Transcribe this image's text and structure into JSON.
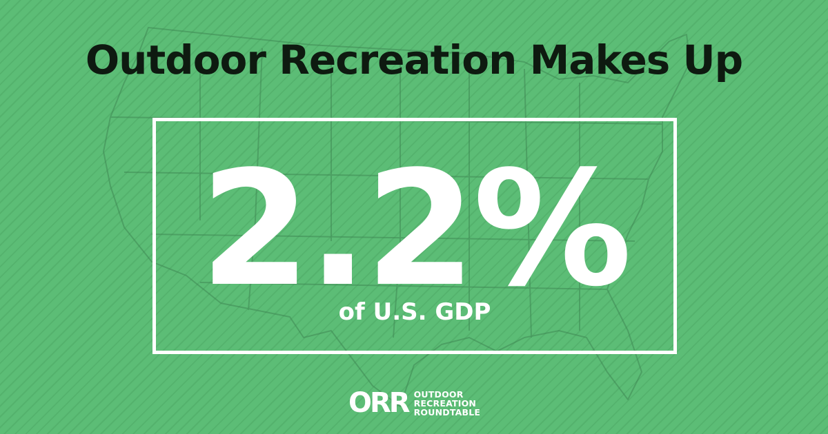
{
  "headline": "Outdoor Recreation Makes Up",
  "stat": {
    "value": "2.2%",
    "caption": "of U.S. GDP"
  },
  "logo": {
    "mark": "ORR",
    "lines": [
      "OUTDOOR",
      "RECREATION",
      "ROUNDTABLE"
    ]
  },
  "colors": {
    "background": "#5cbd76",
    "headline_text": "#0e1a10",
    "stat_text": "#ffffff",
    "box_border": "#ffffff"
  },
  "background_image": "us-map-outline"
}
